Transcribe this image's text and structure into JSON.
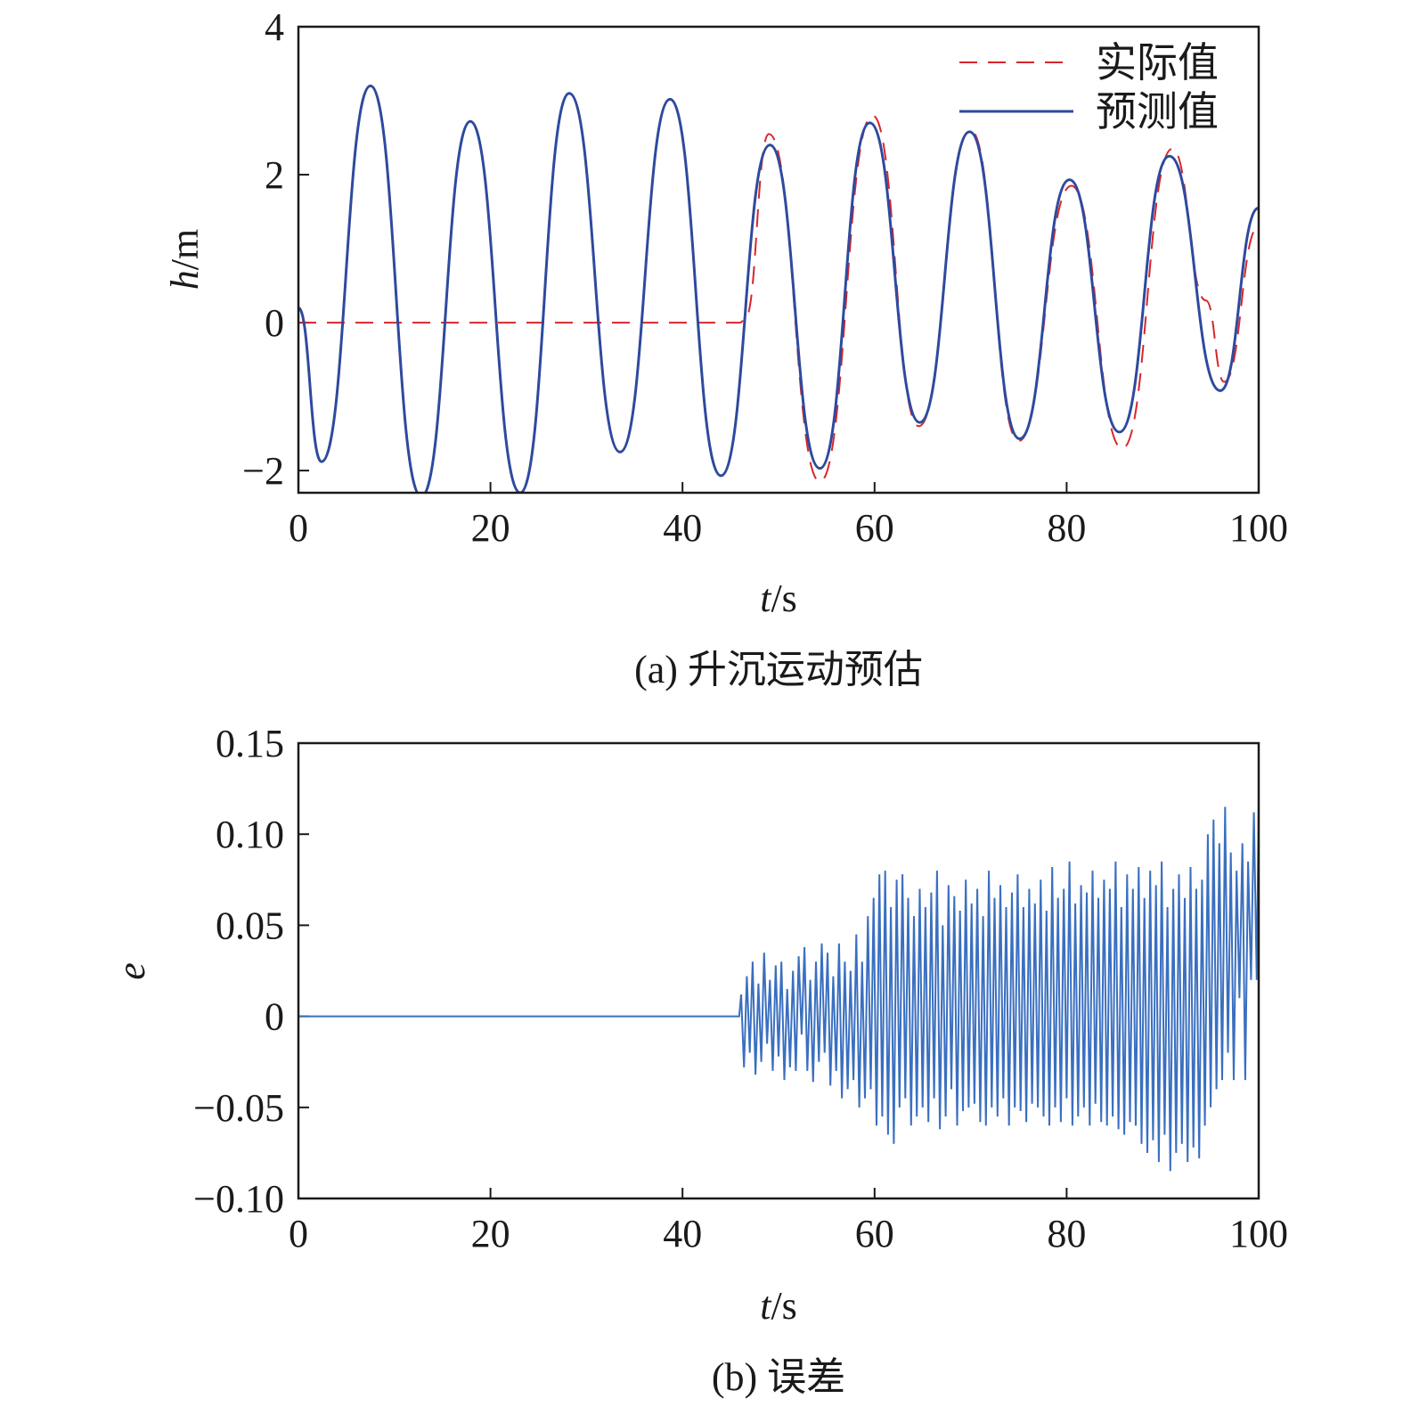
{
  "colors": {
    "actual": "#d7262c",
    "predicted": "#2e4a9e",
    "error": "#3a6fc0",
    "axis": "#1a1a1a"
  },
  "chart_data": [
    {
      "type": "line",
      "caption": "(a) 升沉运动预估",
      "xlabel_var": "t",
      "xlabel_unit": "/s",
      "ylabel_var": "h",
      "ylabel_unit": "/m",
      "xlim": [
        0,
        100
      ],
      "ylim": [
        -2.3,
        4
      ],
      "xticks": [
        0,
        20,
        40,
        60,
        80,
        100
      ],
      "xtick_labels": [
        "0",
        "20",
        "40",
        "60",
        "80",
        "100"
      ],
      "yticks": [
        -2,
        0,
        2,
        4
      ],
      "ytick_labels": [
        "−2",
        "0",
        "2",
        "4"
      ],
      "legend_position": "top-right",
      "series": [
        {
          "name": "实际值",
          "style": "dashed",
          "x": [
            0,
            46,
            46.5,
            49,
            54.3,
            59.8,
            64.6,
            70,
            75,
            80.5,
            85.8,
            91,
            94.5,
            96.4,
            100
          ],
          "y": [
            0,
            0,
            0.05,
            2.55,
            -2.15,
            2.8,
            -1.4,
            2.6,
            -1.6,
            1.85,
            -1.7,
            2.35,
            0.3,
            -0.8,
            1.3
          ]
        },
        {
          "name": "预测值",
          "style": "solid",
          "x": [
            0,
            2.4,
            7.5,
            12.8,
            17.9,
            23.1,
            28.2,
            33.5,
            38.7,
            44,
            49.1,
            54.3,
            59.5,
            64.7,
            69.9,
            75.1,
            80.3,
            85.5,
            90.7,
            96,
            100
          ],
          "y": [
            0.2,
            -1.88,
            3.2,
            -2.35,
            2.72,
            -2.3,
            3.1,
            -1.75,
            3.02,
            -2.07,
            2.4,
            -1.97,
            2.7,
            -1.35,
            2.58,
            -1.57,
            1.93,
            -1.48,
            2.25,
            -0.92,
            1.55
          ]
        }
      ]
    },
    {
      "type": "line",
      "caption": "(b) 误差",
      "xlabel_var": "t",
      "xlabel_unit": "/s",
      "ylabel_var": "e",
      "xlim": [
        0,
        100
      ],
      "ylim": [
        -0.1,
        0.15
      ],
      "xticks": [
        0,
        20,
        40,
        60,
        80,
        100
      ],
      "xtick_labels": [
        "0",
        "20",
        "40",
        "60",
        "80",
        "100"
      ],
      "yticks": [
        -0.1,
        -0.05,
        0,
        0.05,
        0.1,
        0.15
      ],
      "ytick_labels": [
        "−0.10",
        "−0.05",
        "0",
        "0.05",
        "0.10",
        "0.15"
      ],
      "series": [
        {
          "style": "solid",
          "x": [
            0,
            10,
            20,
            30,
            40,
            45.9,
            46.1,
            46.4,
            46.7,
            47,
            47.3,
            47.6,
            47.9,
            48.2,
            48.5,
            48.8,
            49.1,
            49.4,
            49.7,
            50,
            50.3,
            50.6,
            50.9,
            51.2,
            51.5,
            51.8,
            52.1,
            52.4,
            52.7,
            53,
            53.3,
            53.6,
            53.9,
            54.2,
            54.5,
            54.8,
            55.1,
            55.4,
            55.7,
            56,
            56.3,
            56.6,
            56.9,
            57.2,
            57.5,
            57.8,
            58.1,
            58.4,
            58.7,
            59,
            59.3,
            59.6,
            59.9,
            60.2,
            60.5,
            60.8,
            61.1,
            61.4,
            61.7,
            62,
            62.3,
            62.6,
            62.9,
            63.2,
            63.5,
            63.8,
            64.1,
            64.4,
            64.7,
            65,
            65.3,
            65.6,
            65.9,
            66.2,
            66.5,
            66.8,
            67.1,
            67.4,
            67.7,
            68,
            68.3,
            68.6,
            68.9,
            69.2,
            69.5,
            69.8,
            70.1,
            70.4,
            70.7,
            71,
            71.3,
            71.6,
            71.9,
            72.2,
            72.5,
            72.8,
            73.1,
            73.4,
            73.7,
            74,
            74.3,
            74.6,
            74.9,
            75.2,
            75.5,
            75.8,
            76.1,
            76.4,
            76.7,
            77,
            77.3,
            77.6,
            77.9,
            78.2,
            78.5,
            78.8,
            79.1,
            79.4,
            79.7,
            80,
            80.3,
            80.6,
            80.9,
            81.2,
            81.5,
            81.8,
            82.1,
            82.4,
            82.7,
            83,
            83.3,
            83.6,
            83.9,
            84.2,
            84.5,
            84.8,
            85.1,
            85.4,
            85.7,
            86,
            86.3,
            86.6,
            86.9,
            87.2,
            87.5,
            87.8,
            88.1,
            88.4,
            88.7,
            89,
            89.3,
            89.6,
            89.9,
            90.2,
            90.5,
            90.8,
            91.1,
            91.4,
            91.7,
            92,
            92.3,
            92.6,
            92.9,
            93.2,
            93.5,
            93.8,
            94.1,
            94.4,
            94.7,
            95,
            95.3,
            95.6,
            95.9,
            96.2,
            96.5,
            96.8,
            97.1,
            97.4,
            97.7,
            98,
            98.3,
            98.6,
            98.9,
            99.2,
            99.5,
            99.8,
            100
          ],
          "y": [
            0,
            0,
            0,
            0,
            0,
            0,
            0.012,
            -0.028,
            0.022,
            -0.02,
            0.03,
            -0.032,
            0.018,
            -0.025,
            0.035,
            -0.015,
            0.02,
            -0.03,
            0.028,
            -0.022,
            0.03,
            -0.035,
            0.015,
            -0.028,
            0.025,
            -0.03,
            0.033,
            -0.01,
            0.038,
            -0.03,
            0.02,
            -0.036,
            0.03,
            -0.025,
            0.04,
            -0.02,
            0.035,
            -0.038,
            0.022,
            -0.03,
            0.04,
            -0.045,
            0.03,
            -0.04,
            0.025,
            -0.035,
            0.045,
            -0.05,
            0.03,
            -0.045,
            0.055,
            -0.04,
            0.065,
            -0.06,
            0.078,
            -0.055,
            0.08,
            -0.065,
            0.06,
            -0.07,
            0.075,
            -0.05,
            0.078,
            -0.045,
            0.065,
            -0.06,
            0.055,
            -0.055,
            0.07,
            -0.05,
            0.06,
            -0.058,
            0.068,
            -0.045,
            0.08,
            -0.062,
            0.05,
            -0.055,
            0.072,
            -0.04,
            0.066,
            -0.06,
            0.058,
            -0.052,
            0.075,
            -0.05,
            0.062,
            -0.048,
            0.07,
            -0.058,
            0.055,
            -0.06,
            0.08,
            -0.05,
            0.065,
            -0.055,
            0.072,
            -0.045,
            0.06,
            -0.06,
            0.068,
            -0.05,
            0.078,
            -0.052,
            0.06,
            -0.058,
            0.07,
            -0.048,
            0.062,
            -0.05,
            0.075,
            -0.055,
            0.058,
            -0.06,
            0.082,
            -0.05,
            0.065,
            -0.058,
            0.07,
            -0.045,
            0.085,
            -0.06,
            0.062,
            -0.055,
            0.072,
            -0.05,
            0.068,
            -0.06,
            0.08,
            -0.048,
            0.065,
            -0.058,
            0.075,
            -0.06,
            0.07,
            -0.055,
            0.085,
            -0.062,
            0.06,
            -0.065,
            0.078,
            -0.058,
            0.07,
            -0.06,
            0.082,
            -0.07,
            0.065,
            -0.075,
            0.08,
            -0.068,
            0.072,
            -0.08,
            0.085,
            -0.065,
            0.06,
            -0.085,
            0.07,
            -0.075,
            0.078,
            -0.07,
            0.065,
            -0.08,
            0.082,
            -0.072,
            0.07,
            -0.078,
            0.075,
            -0.06,
            0.1,
            -0.05,
            0.108,
            -0.04,
            0.095,
            -0.035,
            0.115,
            -0.02,
            0.09,
            -0.035,
            0.08,
            0.01,
            0.095,
            -0.035,
            0.085,
            0.02,
            0.112,
            0.02,
            0.118
          ]
        }
      ]
    }
  ]
}
